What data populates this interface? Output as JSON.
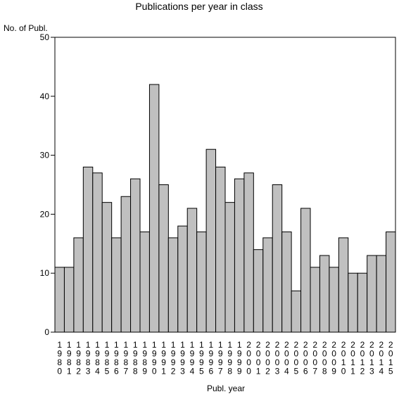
{
  "chart_data": {
    "type": "bar",
    "title": "Publications per year in class",
    "ylabel": "No. of Publ.",
    "xlabel": "Publ. year",
    "ylim": [
      0,
      50
    ],
    "yticks": [
      0,
      10,
      20,
      30,
      40,
      50
    ],
    "grid": false,
    "bar_color": "#c0c0c0",
    "edge_color": "#000000",
    "categories": [
      "1980",
      "1981",
      "1982",
      "1983",
      "1984",
      "1985",
      "1986",
      "1987",
      "1988",
      "1989",
      "1990",
      "1991",
      "1992",
      "1993",
      "1994",
      "1995",
      "1996",
      "1997",
      "1998",
      "1999",
      "2000",
      "2001",
      "2002",
      "2003",
      "2004",
      "2005",
      "2006",
      "2007",
      "2008",
      "2009",
      "2010",
      "2011",
      "2012",
      "2013",
      "2014",
      "2015"
    ],
    "values": [
      11,
      11,
      16,
      28,
      27,
      22,
      16,
      23,
      26,
      17,
      42,
      25,
      16,
      18,
      21,
      17,
      31,
      28,
      22,
      26,
      27,
      14,
      16,
      25,
      17,
      7,
      21,
      11,
      13,
      11,
      16,
      10,
      10,
      13,
      13,
      17
    ]
  }
}
